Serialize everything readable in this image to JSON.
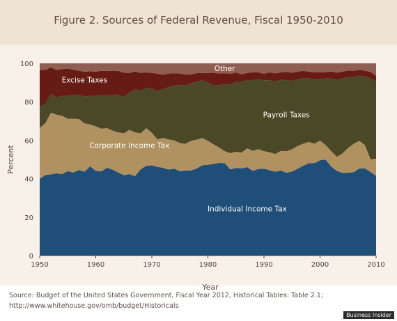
{
  "colors": {
    "individual": "#1f4f78",
    "corporate": "#b19160",
    "payroll": "#4a4826",
    "excise": "#661b14",
    "other": "#8f5e53",
    "panel": "#f7f1e9",
    "header": "#efe3d2",
    "text": "#5d4e47"
  },
  "chart_data": {
    "type": "area",
    "stacked": true,
    "title": "Figure 2. Sources of Federal Revenue, Fiscal 1950-2010",
    "xlabel": "Year",
    "ylabel": "Percent",
    "xlim": [
      1950,
      2010
    ],
    "ylim": [
      0,
      100
    ],
    "x_ticks": [
      1950,
      1960,
      1970,
      1980,
      1990,
      2000,
      2010
    ],
    "y_ticks": [
      0,
      20,
      40,
      60,
      80,
      100
    ],
    "grid": true,
    "x": [
      1950,
      1951,
      1952,
      1953,
      1954,
      1955,
      1956,
      1957,
      1958,
      1959,
      1960,
      1961,
      1962,
      1963,
      1964,
      1965,
      1966,
      1967,
      1968,
      1969,
      1970,
      1971,
      1972,
      1973,
      1974,
      1975,
      1976,
      1977,
      1978,
      1979,
      1980,
      1981,
      1982,
      1983,
      1984,
      1985,
      1986,
      1987,
      1988,
      1989,
      1990,
      1991,
      1992,
      1993,
      1994,
      1995,
      1996,
      1997,
      1998,
      1999,
      2000,
      2001,
      2002,
      2003,
      2004,
      2005,
      2006,
      2007,
      2008,
      2009,
      2010
    ],
    "series": [
      {
        "name": "Individual Income Tax",
        "values": [
          39.9,
          41.9,
          42.2,
          42.8,
          42.4,
          43.9,
          43.2,
          44.5,
          43.6,
          46.4,
          44.0,
          43.8,
          45.7,
          44.7,
          43.2,
          41.8,
          42.4,
          41.3,
          44.9,
          46.7,
          46.9,
          46.1,
          45.7,
          44.7,
          45.2,
          43.9,
          44.2,
          44.3,
          45.3,
          47.0,
          47.2,
          47.7,
          48.2,
          48.1,
          44.8,
          45.6,
          45.4,
          46.0,
          44.1,
          45.0,
          45.2,
          44.4,
          43.6,
          44.2,
          43.1,
          43.7,
          45.2,
          46.7,
          48.1,
          48.1,
          49.6,
          49.9,
          46.3,
          44.0,
          43.0,
          43.1,
          43.4,
          45.3,
          45.4,
          43.5,
          41.5
        ]
      },
      {
        "name": "Corporate Income Tax",
        "values": [
          26.5,
          27.0,
          32.1,
          30.5,
          30.3,
          27.3,
          28.0,
          26.5,
          25.2,
          21.8,
          23.2,
          22.2,
          20.6,
          20.3,
          20.9,
          21.8,
          23.0,
          22.8,
          18.7,
          19.6,
          17.0,
          14.3,
          15.5,
          15.7,
          14.7,
          14.6,
          13.9,
          15.4,
          15.0,
          14.2,
          12.5,
          10.2,
          8.0,
          6.2,
          8.5,
          8.4,
          8.2,
          9.8,
          10.4,
          10.4,
          9.1,
          9.3,
          9.2,
          10.2,
          11.2,
          11.6,
          11.8,
          11.5,
          11.0,
          10.1,
          10.2,
          7.6,
          8.0,
          7.4,
          10.1,
          12.9,
          14.7,
          14.4,
          12.1,
          6.6,
          8.9
        ]
      },
      {
        "name": "Payroll Taxes",
        "values": [
          11.0,
          10.0,
          9.8,
          9.0,
          10.3,
          12.0,
          12.5,
          12.5,
          14.1,
          14.8,
          15.9,
          17.4,
          17.1,
          18.6,
          19.5,
          19.0,
          19.5,
          22.3,
          22.2,
          20.9,
          23.0,
          25.3,
          25.4,
          27.3,
          28.5,
          30.3,
          30.5,
          29.9,
          30.3,
          30.0,
          30.5,
          30.5,
          32.6,
          34.8,
          35.9,
          36.3,
          36.9,
          35.5,
          36.8,
          36.3,
          36.9,
          37.5,
          37.9,
          37.1,
          36.9,
          35.6,
          34.7,
          34.2,
          33.2,
          33.5,
          32.2,
          34.6,
          37.9,
          40.0,
          39.0,
          36.9,
          34.8,
          33.9,
          35.7,
          42.3,
          40.0
        ]
      },
      {
        "name": "Excise Taxes",
        "values": [
          19.1,
          17.7,
          13.8,
          14.3,
          14.0,
          14.1,
          13.0,
          12.7,
          12.7,
          12.9,
          12.6,
          12.7,
          12.6,
          12.5,
          12.5,
          12.5,
          10.1,
          9.4,
          9.2,
          8.1,
          8.1,
          8.9,
          7.5,
          7.0,
          6.4,
          5.9,
          5.6,
          4.7,
          4.3,
          3.8,
          4.7,
          6.8,
          5.9,
          5.8,
          5.4,
          4.9,
          3.8,
          3.7,
          4.0,
          3.6,
          3.4,
          4.1,
          4.1,
          3.8,
          4.3,
          4.2,
          4.0,
          3.7,
          3.4,
          3.6,
          3.4,
          3.3,
          3.6,
          3.7,
          3.6,
          3.4,
          3.2,
          3.0,
          3.0,
          3.1,
          3.1
        ]
      },
      {
        "name": "Other",
        "values": [
          3.5,
          3.4,
          2.1,
          3.4,
          3.0,
          2.7,
          3.3,
          3.8,
          4.4,
          4.1,
          4.3,
          3.9,
          4.0,
          3.9,
          3.9,
          4.9,
          5.0,
          4.2,
          5.0,
          4.7,
          5.0,
          5.4,
          5.9,
          5.3,
          5.2,
          5.3,
          5.8,
          5.7,
          5.1,
          5.0,
          5.1,
          4.8,
          5.3,
          5.1,
          5.4,
          4.8,
          5.7,
          5.0,
          4.7,
          4.7,
          5.4,
          4.7,
          5.2,
          4.7,
          4.5,
          4.9,
          4.3,
          3.9,
          4.3,
          4.7,
          4.6,
          4.6,
          4.2,
          4.9,
          4.3,
          3.7,
          3.9,
          3.4,
          3.8,
          4.5,
          6.5
        ]
      }
    ],
    "area_labels": [
      {
        "series": "Individual Income Tax",
        "text": "Individual Income Tax",
        "x": 1987,
        "y": 23
      },
      {
        "series": "Corporate Income Tax",
        "text": "Corporate Income Tax",
        "x": 1966,
        "y": 56
      },
      {
        "series": "Payroll Taxes",
        "text": "Payroll Taxes",
        "x": 1994,
        "y": 72
      },
      {
        "series": "Excise Taxes",
        "text": "Excise Taxes",
        "x": 1958,
        "y": 90
      },
      {
        "series": "Other",
        "text": "Other",
        "x": 1983,
        "y": 96
      }
    ]
  },
  "source": {
    "line1": "Source: Budget of the United States Government, Fiscal Year 2012, Historical Tables: Table 2.1;",
    "line2": "http://www.whitehouse.gov/omb/budget/Historicals"
  },
  "watermark": "Business Insider"
}
